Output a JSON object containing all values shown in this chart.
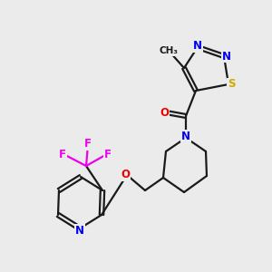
{
  "background_color": "#ebebeb",
  "bond_color": "#1a1a1a",
  "atom_colors": {
    "N": "#0000ee",
    "O": "#ee0000",
    "S": "#ccaa00",
    "F": "#ee00ee",
    "C": "#1a1a1a"
  },
  "figsize": [
    3.0,
    3.0
  ],
  "dpi": 100
}
